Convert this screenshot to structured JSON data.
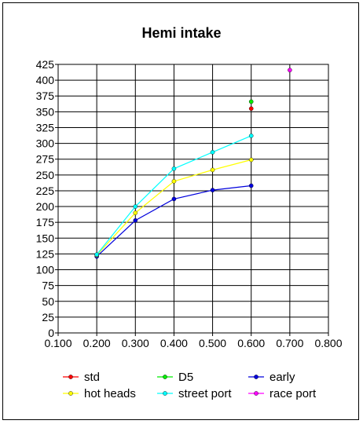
{
  "chart_data": {
    "type": "line",
    "title": "Hemi intake",
    "xlabel": "",
    "ylabel": "",
    "xlim": [
      0.1,
      0.8
    ],
    "ylim": [
      0,
      425
    ],
    "x_ticks": [
      "0.100",
      "0.200",
      "0.300",
      "0.400",
      "0.500",
      "0.600",
      "0.700",
      "0.800"
    ],
    "y_ticks": [
      "0",
      "25",
      "50",
      "75",
      "100",
      "125",
      "150",
      "175",
      "200",
      "225",
      "250",
      "275",
      "300",
      "325",
      "350",
      "375",
      "400",
      "425"
    ],
    "grid": true,
    "legend_position": "bottom",
    "series": [
      {
        "name": "std",
        "color": "#ff0000",
        "points": [
          [
            0.6,
            355
          ]
        ]
      },
      {
        "name": "D5",
        "color": "#00ee00",
        "points": [
          [
            0.6,
            366
          ]
        ]
      },
      {
        "name": "early",
        "color": "#0000dd",
        "points": [
          [
            0.2,
            121
          ],
          [
            0.3,
            178
          ],
          [
            0.4,
            212
          ],
          [
            0.5,
            226
          ],
          [
            0.6,
            233
          ]
        ]
      },
      {
        "name": "hot heads",
        "color": "#ffff00",
        "points": [
          [
            0.2,
            123
          ],
          [
            0.3,
            190
          ],
          [
            0.4,
            240
          ],
          [
            0.5,
            258
          ],
          [
            0.6,
            274
          ]
        ]
      },
      {
        "name": "street port",
        "color": "#00ffff",
        "points": [
          [
            0.2,
            124
          ],
          [
            0.3,
            200
          ],
          [
            0.4,
            260
          ],
          [
            0.5,
            286
          ],
          [
            0.6,
            312
          ]
        ]
      },
      {
        "name": "race port",
        "color": "#ff00ff",
        "points": [
          [
            0.7,
            416
          ]
        ]
      }
    ]
  }
}
